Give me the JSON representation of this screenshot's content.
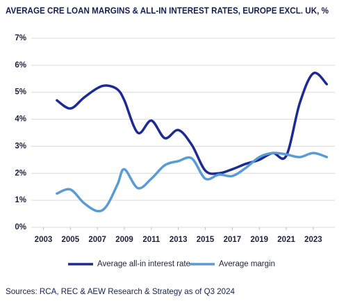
{
  "chart_data": {
    "type": "line",
    "title": "AVERAGE CRE LOAN MARGINS & ALL-IN INTEREST RATES, EUROPE EXCL. UK, %",
    "source": "Sources: RCA, REC & AEW Research & Strategy as of Q3 2024",
    "x": [
      2004,
      2005,
      2006,
      2007,
      2007.7,
      2008.5,
      2009,
      2010,
      2011,
      2012,
      2013,
      2014,
      2015,
      2016,
      2017,
      2018,
      2019,
      2020,
      2021,
      2022,
      2023,
      2024
    ],
    "series": [
      {
        "name": "Average all-in interest rate",
        "color": "#1c2a94",
        "values": [
          4.7,
          4.4,
          4.8,
          5.15,
          5.25,
          5.1,
          4.7,
          3.5,
          3.95,
          3.3,
          3.6,
          3.05,
          2.1,
          2.0,
          2.15,
          2.35,
          2.5,
          2.75,
          2.65,
          4.6,
          5.7,
          5.3
        ]
      },
      {
        "name": "Average margin",
        "color": "#5b9bd5",
        "values": [
          1.25,
          1.4,
          0.9,
          0.6,
          0.8,
          1.6,
          2.15,
          1.45,
          1.8,
          2.3,
          2.45,
          2.55,
          1.8,
          1.95,
          1.9,
          2.2,
          2.6,
          2.75,
          2.7,
          2.6,
          2.75,
          2.6
        ]
      }
    ],
    "xlim": [
      2002.1,
      2024.6
    ],
    "xticks": [
      2003,
      2005,
      2007,
      2009,
      2011,
      2013,
      2015,
      2017,
      2019,
      2021,
      2023
    ],
    "ylim": [
      0,
      7
    ],
    "yticks": [
      {
        "value": 0,
        "label": "0%"
      },
      {
        "value": 1,
        "label": "1%"
      },
      {
        "value": 2,
        "label": "2%"
      },
      {
        "value": 3,
        "label": "3%"
      },
      {
        "value": 4,
        "label": "4%"
      },
      {
        "value": 5,
        "label": "5%"
      },
      {
        "value": 6,
        "label": "6%"
      },
      {
        "value": 7,
        "label": "7%"
      }
    ],
    "grid": true,
    "legend": "bottom"
  }
}
